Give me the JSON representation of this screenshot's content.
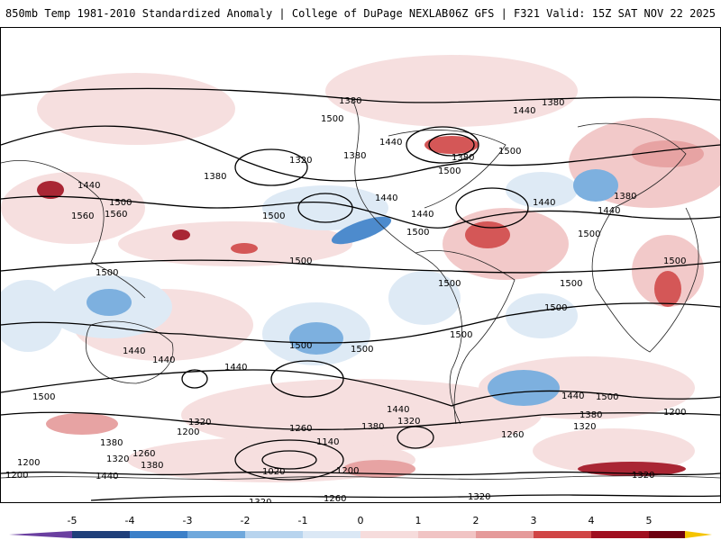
{
  "header": {
    "title_left": "850mb Temp 1981-2010 Standardized Anomaly | College of DuPage NEXLAB",
    "title_right": "06Z GFS | F321 Valid: 15Z SAT NOV 22 2025"
  },
  "contour_labels": [
    "1380",
    "1380",
    "1440",
    "1500",
    "1440",
    "1320",
    "1380",
    "1380",
    "1440",
    "1380",
    "1500",
    "1440",
    "1500",
    "1500",
    "1440",
    "1560",
    "1560",
    "1500",
    "1380",
    "1500",
    "1500",
    "1500",
    "1500",
    "1500",
    "1500",
    "1500",
    "1500",
    "1500",
    "1440",
    "1440",
    "1440",
    "1500",
    "1440",
    "1500",
    "1380",
    "1320",
    "1200",
    "1260",
    "1320",
    "1380",
    "1440",
    "1320",
    "1260",
    "1200",
    "1380",
    "1320",
    "1260",
    "1200",
    "1200",
    "1140",
    "1020",
    "1200",
    "1260",
    "1320",
    "1380",
    "1320",
    "1380",
    "1380",
    "1320",
    "1500",
    "1440",
    "1440",
    "1500",
    "1440"
  ],
  "colorbar": {
    "tick_labels": [
      "-5",
      "-4",
      "-3",
      "-2",
      "-1",
      "0",
      "1",
      "2",
      "3",
      "4",
      "5"
    ],
    "colors": {
      "neg5": "#6a3fa0",
      "neg4": "#1f3f7a",
      "neg3": "#3a7fc8",
      "neg2": "#6fa8dc",
      "neg1": "#b8d4ee",
      "zero_neg": "#dbe8f5",
      "zero_pos": "#f6dcdc",
      "pos1": "#f1c4c4",
      "pos2": "#e59a9a",
      "pos3": "#d04545",
      "pos4": "#a00f1f",
      "pos5": "#6e0010",
      "pos_extreme": "#f5c400"
    }
  }
}
